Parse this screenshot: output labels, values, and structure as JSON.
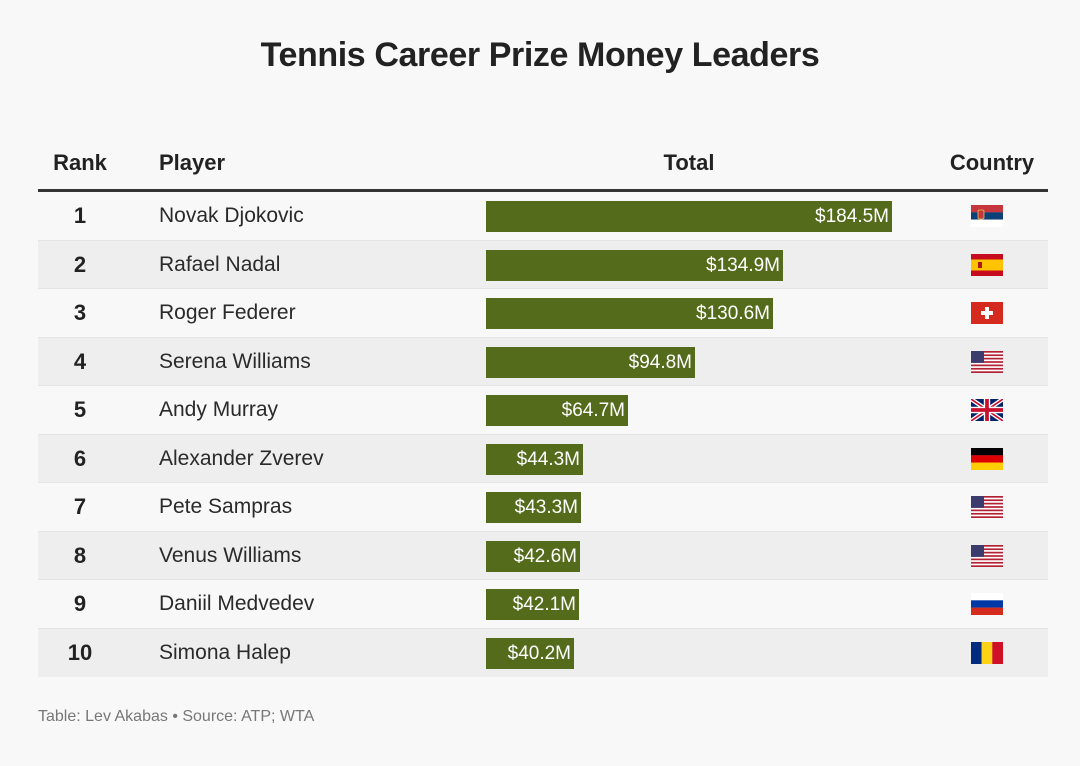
{
  "title": "Tennis Career Prize Money Leaders",
  "headers": {
    "rank": "Rank",
    "player": "Player",
    "total": "Total",
    "country": "Country"
  },
  "colors": {
    "bar": "#546b1c",
    "bar_text": "#ffffff",
    "alt_row": "#eeeeee"
  },
  "chart_data": {
    "type": "table",
    "title": "Tennis Career Prize Money Leaders",
    "columns": [
      "Rank",
      "Player",
      "Total",
      "Country"
    ],
    "max_value": 184.5,
    "rows": [
      {
        "rank": "1",
        "player": "Novak Djokovic",
        "value": 184.5,
        "label": "$184.5M",
        "flag": "serbia-flag-icon"
      },
      {
        "rank": "2",
        "player": "Rafael Nadal",
        "value": 134.9,
        "label": "$134.9M",
        "flag": "spain-flag-icon"
      },
      {
        "rank": "3",
        "player": "Roger Federer",
        "value": 130.6,
        "label": "$130.6M",
        "flag": "switzerland-flag-icon"
      },
      {
        "rank": "4",
        "player": "Serena Williams",
        "value": 94.8,
        "label": "$94.8M",
        "flag": "usa-flag-icon"
      },
      {
        "rank": "5",
        "player": "Andy Murray",
        "value": 64.7,
        "label": "$64.7M",
        "flag": "uk-flag-icon"
      },
      {
        "rank": "6",
        "player": "Alexander Zverev",
        "value": 44.3,
        "label": "$44.3M",
        "flag": "germany-flag-icon"
      },
      {
        "rank": "7",
        "player": "Pete Sampras",
        "value": 43.3,
        "label": "$43.3M",
        "flag": "usa-flag-icon"
      },
      {
        "rank": "8",
        "player": "Venus Williams",
        "value": 42.6,
        "label": "$42.6M",
        "flag": "usa-flag-icon"
      },
      {
        "rank": "9",
        "player": "Daniil Medvedev",
        "value": 42.1,
        "label": "$42.1M",
        "flag": "russia-flag-icon"
      },
      {
        "rank": "10",
        "player": "Simona Halep",
        "value": 40.2,
        "label": "$40.2M",
        "flag": "romania-flag-icon"
      }
    ]
  },
  "source": "Table: Lev Akabas • Source: ATP; WTA"
}
